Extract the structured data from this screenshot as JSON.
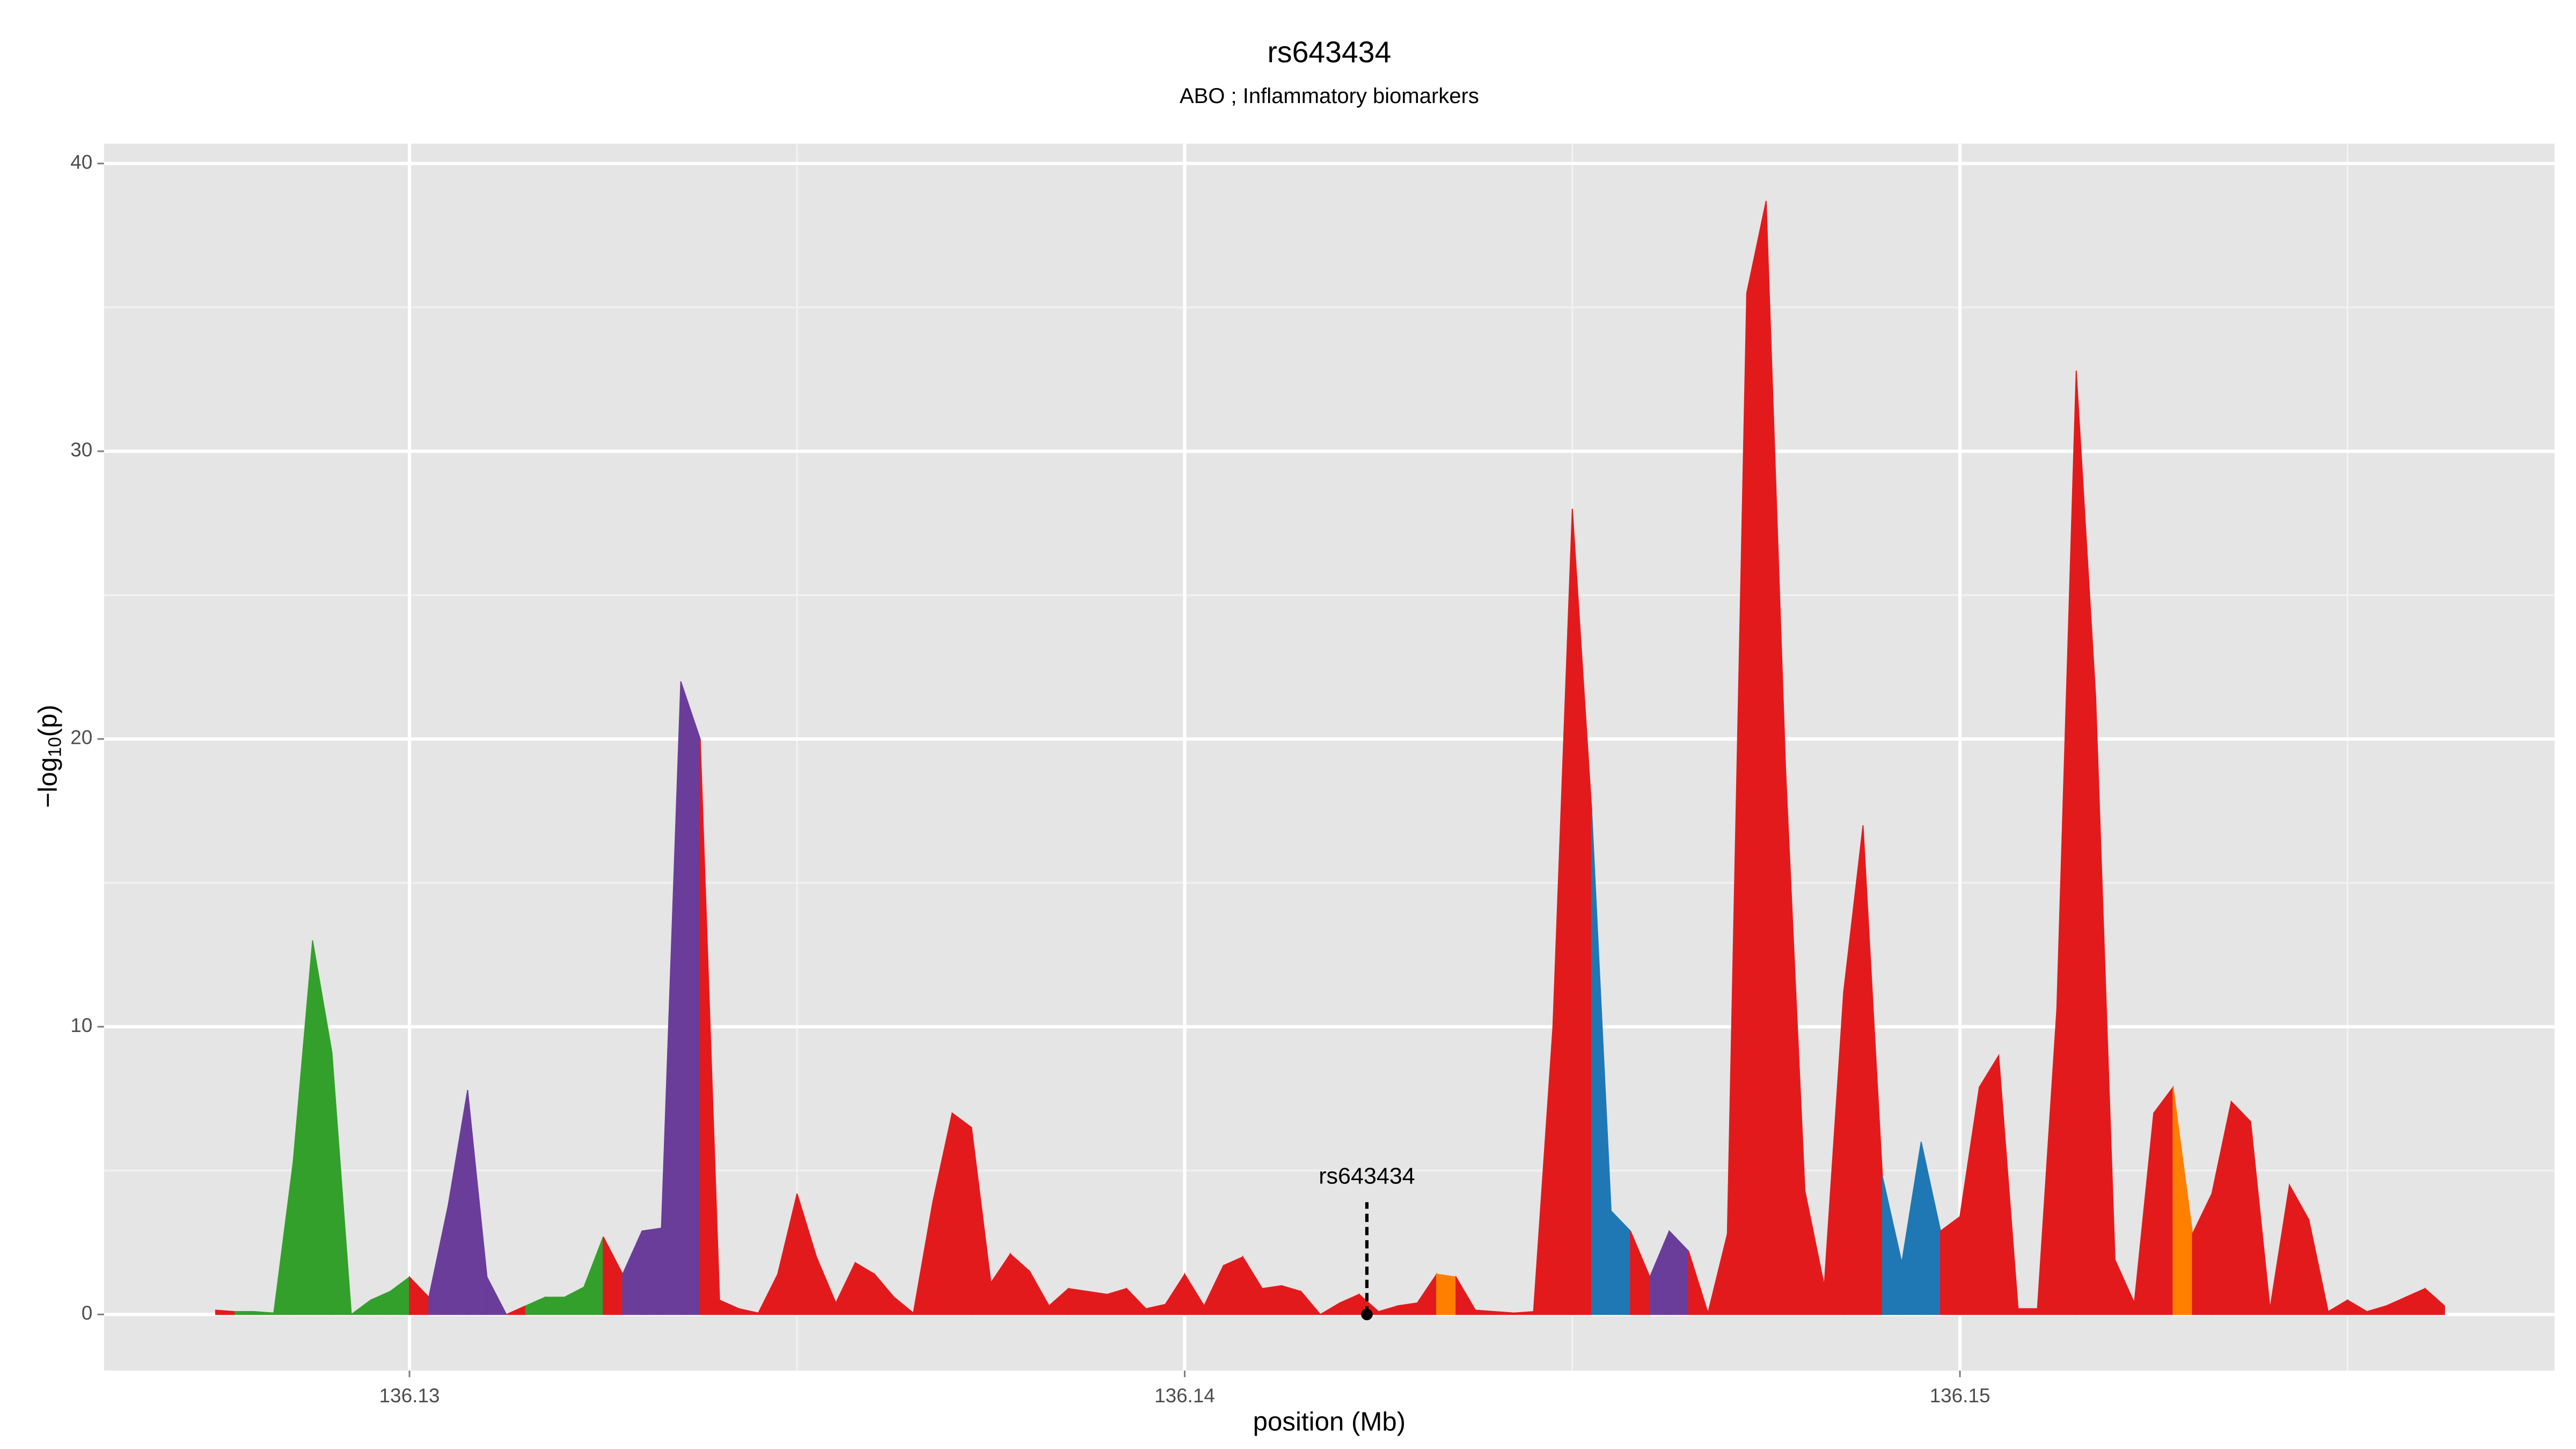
{
  "chart_data": {
    "type": "area",
    "title": "rs643434",
    "subtitle": "ABO ; Inflammatory biomarkers",
    "xlabel": "position (Mb)",
    "ylabel": [
      "−log",
      "10",
      "(p)"
    ],
    "xlim": [
      136.12606,
      136.15767
    ],
    "ylim": [
      -1.95,
      40.69
    ],
    "xticks": [
      136.13,
      136.14,
      136.15
    ],
    "xminor": [
      136.135,
      136.145,
      136.155
    ],
    "yticks": [
      0,
      10,
      20,
      30,
      40
    ],
    "yminor": [
      5,
      15,
      25,
      35
    ],
    "grid": true,
    "x": [
      136.1275,
      136.12775,
      136.128,
      136.12825,
      136.1285,
      136.12875,
      136.129,
      136.12925,
      136.1295,
      136.12975,
      136.13,
      136.13025,
      136.1305,
      136.13075,
      136.131,
      136.13125,
      136.1315,
      136.13175,
      136.132,
      136.13225,
      136.1325,
      136.13275,
      136.133,
      136.13325,
      136.1335,
      136.13375,
      136.134,
      136.13425,
      136.1345,
      136.13475,
      136.135,
      136.13525,
      136.1355,
      136.13575,
      136.136,
      136.13625,
      136.1365,
      136.13675,
      136.137,
      136.13725,
      136.1375,
      136.13775,
      136.138,
      136.13825,
      136.1385,
      136.13875,
      136.139,
      136.13925,
      136.1395,
      136.13975,
      136.14,
      136.14025,
      136.1405,
      136.14075,
      136.141,
      136.14125,
      136.1415,
      136.14175,
      136.142,
      136.14225,
      136.1425,
      136.14275,
      136.143,
      136.14325,
      136.1435,
      136.14375,
      136.144,
      136.14425,
      136.1445,
      136.14475,
      136.145,
      136.14525,
      136.1455,
      136.14575,
      136.146,
      136.14625,
      136.1465,
      136.14675,
      136.147,
      136.14725,
      136.1475,
      136.14775,
      136.148,
      136.14825,
      136.1485,
      136.14875,
      136.149,
      136.14925,
      136.1495,
      136.14975,
      136.15,
      136.15025,
      136.1505,
      136.15075,
      136.151,
      136.15125,
      136.1515,
      136.15175,
      136.152,
      136.15225,
      136.1525,
      136.15275,
      136.153,
      136.15325,
      136.1535,
      136.15375,
      136.154,
      136.15425,
      136.1545,
      136.15475,
      136.155,
      136.15525,
      136.1555,
      136.15575,
      136.156,
      136.15625
    ],
    "values": [
      0.15,
      0.1,
      0.1,
      0.05,
      5.3,
      13,
      9.1,
      0,
      0.5,
      0.8,
      1.3,
      0.6,
      3.8,
      7.8,
      1.3,
      0,
      0.3,
      0.6,
      0.6,
      0.95,
      2.7,
      1.4,
      2.9,
      3.0,
      22,
      20,
      0.5,
      0.2,
      0.05,
      1.4,
      4.2,
      2.0,
      0.4,
      1.8,
      1.4,
      0.6,
      0.05,
      3.9,
      7.0,
      6.5,
      1.1,
      2.1,
      1.5,
      0.3,
      0.9,
      0.8,
      0.7,
      0.9,
      0.2,
      0.35,
      1.4,
      0.3,
      1.7,
      2.0,
      0.9,
      1.0,
      0.8,
      0,
      0.4,
      0.7,
      0.1,
      0.3,
      0.4,
      1.4,
      1.3,
      0.15,
      0.1,
      0.05,
      0.1,
      10,
      28,
      17.5,
      3.6,
      2.9,
      1.3,
      2.9,
      2.2,
      0.05,
      2.8,
      35.5,
      38.7,
      19,
      4.3,
      1.0,
      11.2,
      17,
      4.8,
      1.8,
      6.0,
      2.9,
      3.4,
      7.9,
      9.0,
      0.2,
      0.2,
      10.6,
      32.8,
      21.5,
      1.9,
      0.4,
      7.0,
      7.9,
      2.8,
      4.2,
      7.4,
      6.7,
      0.2,
      4.5,
      3.3,
      0.1,
      0.5,
      0.1,
      0.3,
      0.6,
      0.9,
      0.3
    ],
    "colors": [
      "#e31a1c",
      "#33a02c",
      "#33a02c",
      "#33a02c",
      "#33a02c",
      "#33a02c",
      "#33a02c",
      "#33a02c",
      "#33a02c",
      "#33a02c",
      "#e31a1c",
      "#6a3d9a",
      "#6a3d9a",
      "#6a3d9a",
      "#6a3d9a",
      "#e31a1c",
      "#33a02c",
      "#33a02c",
      "#33a02c",
      "#33a02c",
      "#e31a1c",
      "#6a3d9a",
      "#6a3d9a",
      "#6a3d9a",
      "#6a3d9a",
      "#e31a1c",
      "#e31a1c",
      "#e31a1c",
      "#e31a1c",
      "#e31a1c",
      "#e31a1c",
      "#e31a1c",
      "#e31a1c",
      "#e31a1c",
      "#e31a1c",
      "#e31a1c",
      "#e31a1c",
      "#e31a1c",
      "#e31a1c",
      "#e31a1c",
      "#e31a1c",
      "#e31a1c",
      "#e31a1c",
      "#e31a1c",
      "#e31a1c",
      "#e31a1c",
      "#e31a1c",
      "#e31a1c",
      "#e31a1c",
      "#e31a1c",
      "#e31a1c",
      "#e31a1c",
      "#e31a1c",
      "#e31a1c",
      "#e31a1c",
      "#e31a1c",
      "#e31a1c",
      "#e31a1c",
      "#e31a1c",
      "#e31a1c",
      "#e31a1c",
      "#e31a1c",
      "#e31a1c",
      "#ff7f00",
      "#e31a1c",
      "#e31a1c",
      "#e31a1c",
      "#e31a1c",
      "#e31a1c",
      "#e31a1c",
      "#e31a1c",
      "#1f78b4",
      "#1f78b4",
      "#e31a1c",
      "#6a3d9a",
      "#6a3d9a",
      "#e31a1c",
      "#e31a1c",
      "#e31a1c",
      "#e31a1c",
      "#e31a1c",
      "#e31a1c",
      "#e31a1c",
      "#e31a1c",
      "#e31a1c",
      "#e31a1c",
      "#1f78b4",
      "#1f78b4",
      "#1f78b4",
      "#e31a1c",
      "#e31a1c",
      "#e31a1c",
      "#e31a1c",
      "#e31a1c",
      "#e31a1c",
      "#e31a1c",
      "#e31a1c",
      "#e31a1c",
      "#e31a1c",
      "#e31a1c",
      "#e31a1c",
      "#ff7f00",
      "#e31a1c",
      "#e31a1c",
      "#e31a1c",
      "#e31a1c",
      "#e31a1c",
      "#e31a1c",
      "#e31a1c",
      "#e31a1c",
      "#e31a1c",
      "#e31a1c",
      "#e31a1c",
      "#e31a1c",
      "#e31a1c",
      "#e31a1c"
    ],
    "annotation": {
      "text": "rs643434",
      "x": 136.14235,
      "y": 0
    }
  }
}
